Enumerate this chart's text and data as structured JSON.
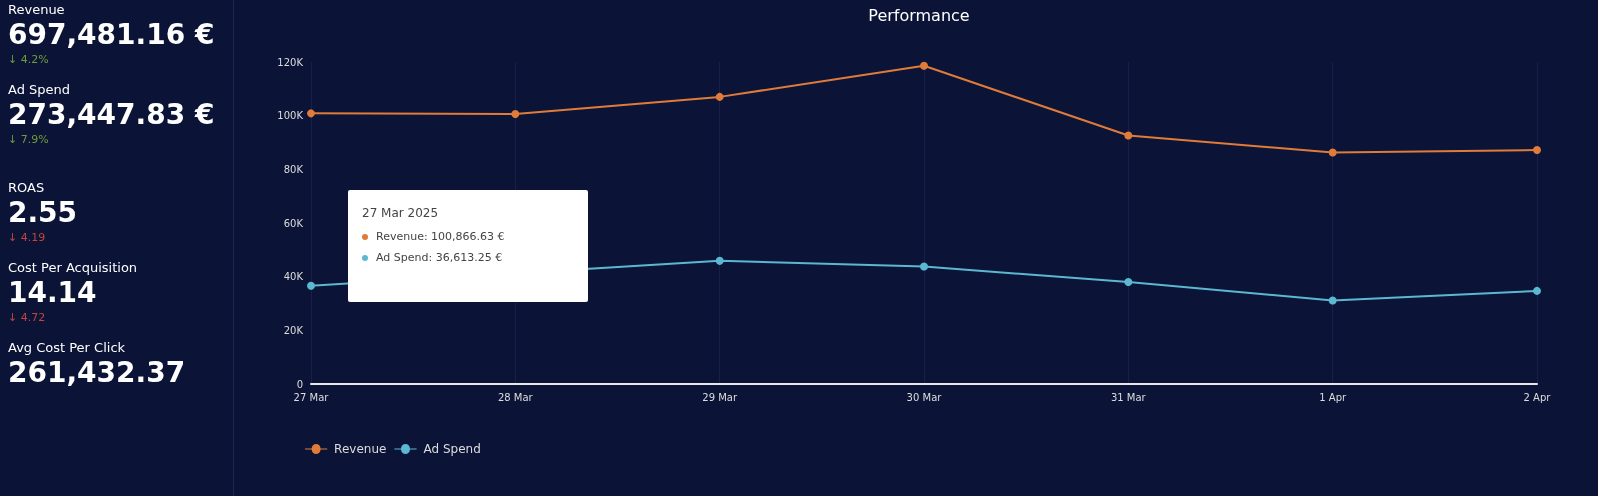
{
  "chart_data": [
    {
      "type": "other",
      "categories": [
        "Revenue",
        "Ad Spend",
        "ROAS",
        "Cost Per Acquisition",
        "Avg Cost Per Click"
      ],
      "value_labels": [
        "697,481.16 €",
        "273,447.83 €",
        "2.55",
        "14.14",
        "261,432.37"
      ],
      "annotations": [
        "↓ 4.2%",
        "↓ 7.9%",
        "↓ 4.19",
        "↓ 4.72"
      ],
      "colors": [
        "#6f9a3c",
        "#6f9a3c",
        "#c0453a",
        "#c0453a"
      ]
    },
    {
      "type": "line",
      "title": "Performance",
      "categories": [
        "27 Mar",
        "28 Mar",
        "29 Mar",
        "30 Mar",
        "31 Mar",
        "1 Apr",
        "2 Apr"
      ],
      "series": [
        {
          "name": "Revenue",
          "color": "#e07b39",
          "values": [
            100866.63,
            100600,
            107000,
            118600,
            92600,
            86300,
            87200
          ]
        },
        {
          "name": "Ad Spend",
          "color": "#5bb8d0",
          "values": [
            36613.25,
            null,
            45900,
            43800,
            38000,
            31100,
            34700
          ]
        }
      ],
      "ylim": [
        0,
        120000
      ],
      "yticks": [
        {
          "value": 0,
          "label": "0"
        },
        {
          "value": 20000,
          "label": "20K"
        },
        {
          "value": 40000,
          "label": "40K"
        },
        {
          "value": 60000,
          "label": "60K"
        },
        {
          "value": 80000,
          "label": "80K"
        },
        {
          "value": 100000,
          "label": "100K"
        },
        {
          "value": 120000,
          "label": "120K"
        }
      ],
      "grid": "x",
      "legend": "bottom left",
      "marker": "circle",
      "line_style": "solid",
      "annotations": [
        "27 Mar 2025",
        "Revenue: 100,866.63 €",
        "Ad Spend: 36,613.25 €"
      ]
    }
  ]
}
